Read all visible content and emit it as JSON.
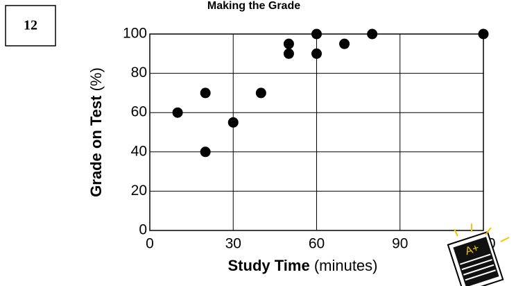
{
  "problem_number": "12",
  "chart_data": {
    "type": "scatter",
    "title": "Making the Grade",
    "xlabel": "Study Time",
    "xlabel_unit": "(minutes)",
    "ylabel": "Grade on Test",
    "ylabel_unit": "(%)",
    "x": [
      10,
      20,
      20,
      30,
      40,
      50,
      50,
      60,
      60,
      70,
      80,
      120
    ],
    "values": [
      60,
      70,
      40,
      55,
      70,
      95,
      90,
      100,
      90,
      95,
      100,
      100
    ],
    "color": "#000000",
    "xlim": [
      0,
      120
    ],
    "xticks": [
      0,
      30,
      60,
      90,
      120
    ],
    "ylim": [
      0,
      100
    ],
    "yticks": [
      0,
      20,
      40,
      60,
      80,
      100
    ],
    "grid": true,
    "annotations": [
      "A+"
    ]
  }
}
